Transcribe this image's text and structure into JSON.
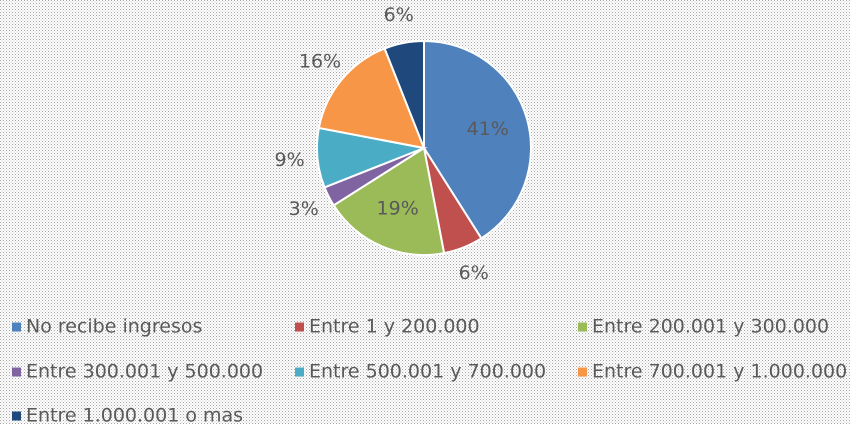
{
  "chart_data": {
    "type": "pie",
    "categories": [
      "No recibe ingresos",
      "Entre 1 y 200.000",
      "Entre 200.001 y 300.000",
      "Entre 300.001 y 500.000",
      "Entre 500.001 y 700.000",
      "Entre 700.001 y 1.000.000",
      "Entre 1.000.001 o mas"
    ],
    "values": [
      41,
      6,
      19,
      3,
      9,
      16,
      6
    ],
    "value_labels": [
      "41%",
      "6%",
      "19%",
      "3%",
      "9%",
      "16%",
      "6%"
    ],
    "colors": [
      "#4f81bd",
      "#c0504d",
      "#9bbb59",
      "#8064a2",
      "#4bacc6",
      "#f79646",
      "#1f497d"
    ],
    "legend": "bottom"
  }
}
